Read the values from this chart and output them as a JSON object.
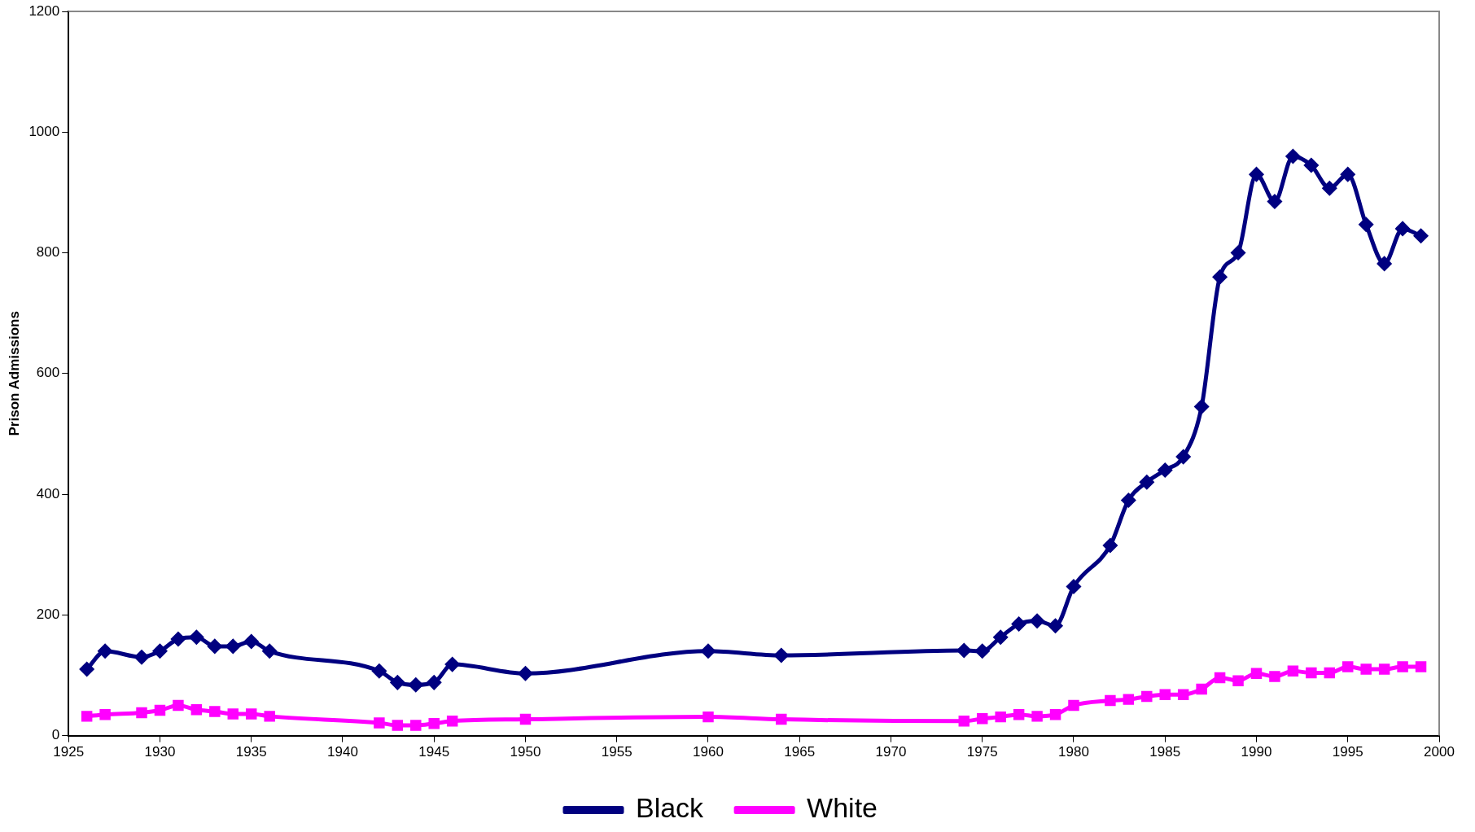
{
  "chart_data": {
    "type": "line",
    "ylabel": "Prison Admissions",
    "x": [
      1926,
      1927,
      1929,
      1930,
      1931,
      1932,
      1933,
      1934,
      1935,
      1936,
      1942,
      1943,
      1944,
      1945,
      1946,
      1950,
      1960,
      1964,
      1974,
      1975,
      1976,
      1977,
      1978,
      1979,
      1980,
      1982,
      1983,
      1984,
      1985,
      1986,
      1987,
      1988,
      1989,
      1990,
      1991,
      1992,
      1993,
      1994,
      1995,
      1996,
      1997,
      1998,
      1999
    ],
    "series": [
      {
        "name": "Black",
        "color": "#000080",
        "marker": "diamond",
        "values": [
          110,
          140,
          130,
          140,
          160,
          163,
          148,
          148,
          156,
          140,
          107,
          88,
          84,
          88,
          118,
          103,
          140,
          133,
          141,
          140,
          163,
          185,
          190,
          182,
          247,
          315,
          390,
          420,
          440,
          462,
          545,
          760,
          800,
          930,
          885,
          960,
          945,
          907,
          930,
          847,
          782,
          840,
          828
        ]
      },
      {
        "name": "White",
        "color": "#ff00ff",
        "marker": "square",
        "values": [
          32,
          35,
          38,
          42,
          50,
          43,
          40,
          36,
          36,
          32,
          21,
          17,
          17,
          20,
          24,
          27,
          31,
          27,
          24,
          28,
          31,
          35,
          32,
          35,
          50,
          58,
          60,
          65,
          68,
          68,
          77,
          96,
          91,
          103,
          98,
          107,
          104,
          104,
          114,
          110,
          110,
          114,
          114
        ]
      }
    ],
    "xlim": [
      1925,
      2000
    ],
    "xticks": [
      1925,
      1930,
      1935,
      1940,
      1945,
      1950,
      1955,
      1960,
      1965,
      1970,
      1975,
      1980,
      1985,
      1990,
      1995,
      2000
    ],
    "ylim": [
      0,
      1200
    ],
    "yticks": [
      0,
      200,
      400,
      600,
      800,
      1000,
      1200
    ],
    "grid": false,
    "legend": "bottom",
    "line_style": "solid"
  }
}
